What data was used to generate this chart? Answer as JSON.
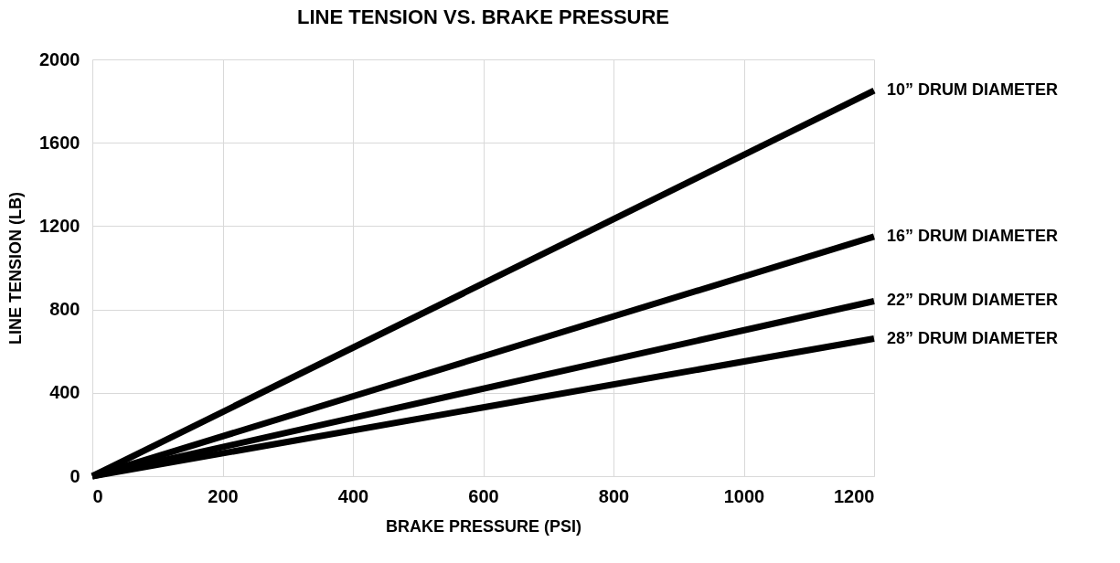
{
  "chart_data": {
    "type": "line",
    "title": "LINE TENSION VS. BRAKE PRESSURE",
    "xlabel": "BRAKE PRESSURE (PSI)",
    "ylabel": "LINE TENSION (LB)",
    "x": [
      0,
      1200
    ],
    "series": [
      {
        "name": "10”  DRUM DIAMETER",
        "color": "#000000",
        "values": [
          0,
          1850
        ]
      },
      {
        "name": "16”  DRUM DIAMETER",
        "color": "#000000",
        "values": [
          0,
          1150
        ]
      },
      {
        "name": "22”  DRUM DIAMETER",
        "color": "#000000",
        "values": [
          0,
          840
        ]
      },
      {
        "name": "28”  DRUM DIAMETER",
        "color": "#000000",
        "values": [
          0,
          660
        ]
      }
    ],
    "xlim": [
      0,
      1200
    ],
    "xticks": [
      0,
      200,
      400,
      600,
      800,
      1000,
      1200
    ],
    "ylim": [
      0,
      2000
    ],
    "yticks": [
      0,
      400,
      800,
      1200,
      1600,
      2000
    ],
    "grid": true,
    "legend": false,
    "marker": "none",
    "line_style": "solid"
  }
}
